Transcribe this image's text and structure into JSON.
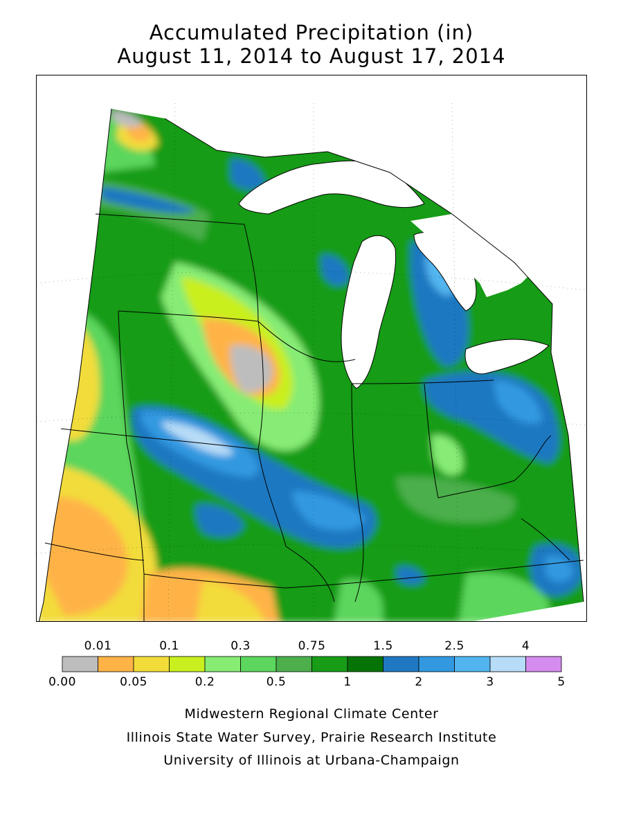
{
  "title": {
    "line1": "Accumulated Precipitation (in)",
    "line2": "August 11, 2014 to August 17, 2014"
  },
  "legend": {
    "colors": [
      "#bdbdbd",
      "#ffb347",
      "#f2dc3a",
      "#c9ef1e",
      "#86ec74",
      "#5cd65c",
      "#4caf4c",
      "#189c18",
      "#067306",
      "#1f78c1",
      "#3299e0",
      "#52b5ef",
      "#b7dcf7",
      "#d58cee"
    ],
    "top_labels": [
      "0.01",
      "0.1",
      "0.3",
      "0.75",
      "1.5",
      "2.5",
      "4"
    ],
    "bottom_labels": [
      "0.00",
      "0.05",
      "0.2",
      "0.5",
      "1",
      "2",
      "3",
      "5"
    ]
  },
  "map": {
    "palette": {
      "gray": "#bdbdbd",
      "orange": "#ffb347",
      "yellow": "#f2dc3a",
      "lime": "#c9ef1e",
      "lightgreen": "#86ec74",
      "green": "#5cd65c",
      "midgreen": "#4caf4c",
      "darkgreen1": "#189c18",
      "darkgreen2": "#067306",
      "blue1": "#1f78c1",
      "blue2": "#3299e0",
      "blue3": "#52b5ef",
      "blue4": "#b7dcf7",
      "water": "#ffffff",
      "boundary": "#000000"
    }
  },
  "credits": {
    "line1": "Midwestern Regional Climate Center",
    "line2": "Illinois State Water Survey, Prairie Research Institute",
    "line3": "University of Illinois at Urbana-Champaign"
  }
}
